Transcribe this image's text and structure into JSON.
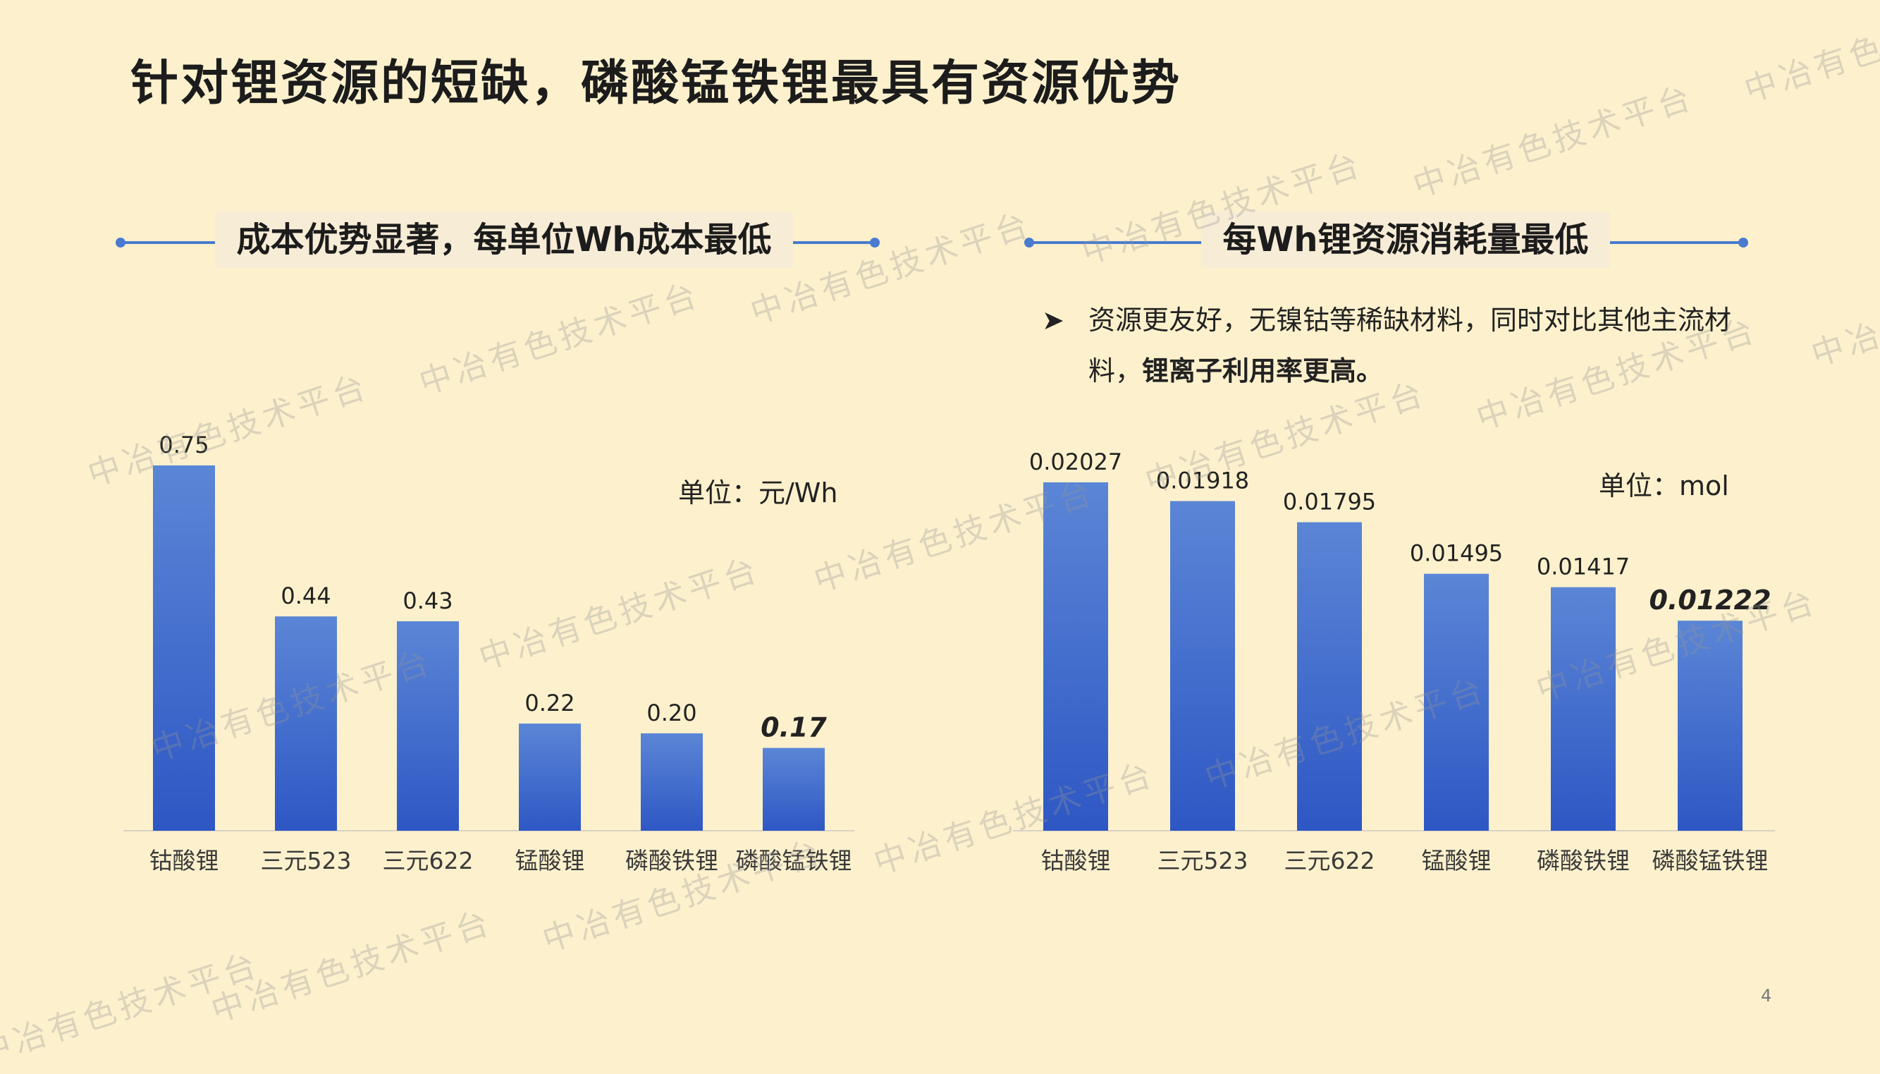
{
  "title": "针对锂资源的短缺，磷酸锰铁锂最具有资源优势",
  "left_section": {
    "heading": "成本优势显著，每单位Wh成本最低",
    "unit": "单位：元/Wh"
  },
  "right_section": {
    "heading": "每Wh锂资源消耗量最低",
    "bullet_arrow": "➤",
    "bullet_normal": "资源更友好，无镍钴等稀缺材料，同时对比其他主流材料，",
    "bullet_bold": "锂离子利用率更高。",
    "unit": "单位：mol"
  },
  "page_number": "4",
  "watermark_text": "中冶有色技术平台",
  "colors": {
    "background": "#fdf1cd",
    "bar_top": "#5b86d6",
    "bar_bottom": "#2e57c4",
    "accent_line": "#4a7bd0"
  },
  "chart_data": [
    {
      "type": "bar",
      "categories": [
        "钴酸锂",
        "三元523",
        "三元622",
        "锰酸锂",
        "磷酸铁锂",
        "磷酸锰铁锂"
      ],
      "values": [
        0.75,
        0.44,
        0.43,
        0.22,
        0.2,
        0.17
      ],
      "value_labels": [
        "0.75",
        "0.44",
        "0.43",
        "0.22",
        "0.20",
        "0.17"
      ],
      "highlight_index": 5,
      "ylim": [
        0,
        0.75
      ],
      "title": "",
      "xlabel": "",
      "ylabel": "",
      "grid": false
    },
    {
      "type": "bar",
      "categories": [
        "钴酸锂",
        "三元523",
        "三元622",
        "锰酸锂",
        "磷酸铁锂",
        "磷酸锰铁锂"
      ],
      "values": [
        0.02027,
        0.01918,
        0.01795,
        0.01495,
        0.01417,
        0.01222
      ],
      "value_labels": [
        "0.02027",
        "0.01918",
        "0.01795",
        "0.01495",
        "0.01417",
        "0.01222"
      ],
      "highlight_index": 5,
      "ylim": [
        0,
        0.02027
      ],
      "title": "",
      "xlabel": "",
      "ylabel": "",
      "grid": false
    }
  ]
}
